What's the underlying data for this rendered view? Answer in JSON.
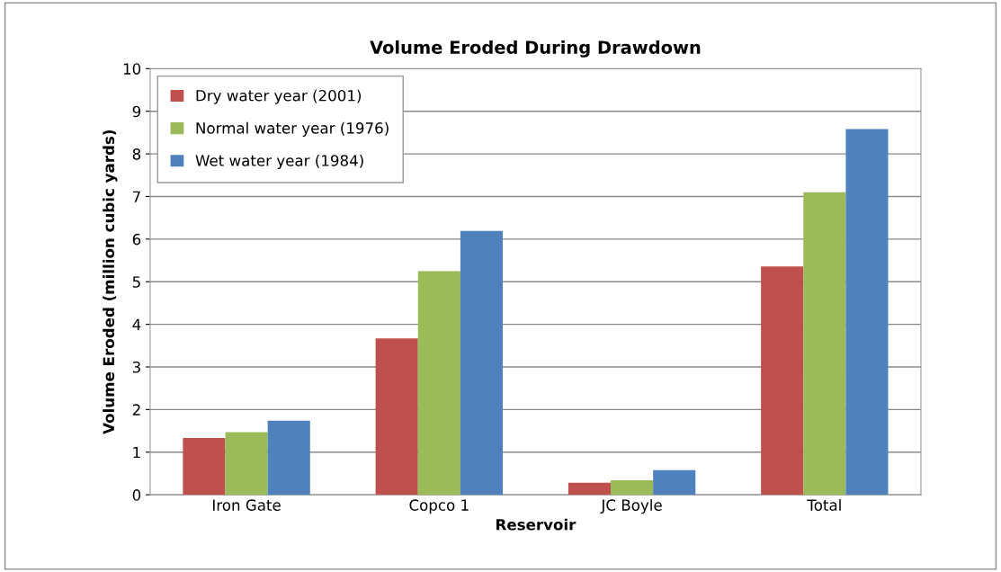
{
  "chart_data": {
    "type": "bar",
    "title": "Volume Eroded During Drawdown",
    "xlabel": "Reservoir",
    "ylabel": "Volume Eroded (million cubic yards)",
    "categories": [
      "Iron Gate",
      "Copco 1",
      "JC Boyle",
      "Total"
    ],
    "series": [
      {
        "name": "Dry water year (2001)",
        "color": "#c0504d",
        "values": [
          1.33,
          3.67,
          0.28,
          5.36
        ]
      },
      {
        "name": "Normal water year (1976)",
        "color": "#9bbb59",
        "values": [
          1.47,
          5.25,
          0.34,
          7.1
        ]
      },
      {
        "name": "Wet water year (1984)",
        "color": "#4f81bd",
        "values": [
          1.74,
          6.19,
          0.58,
          8.58
        ]
      }
    ],
    "ylim": [
      0,
      10
    ],
    "yticks": [
      0,
      1,
      2,
      3,
      4,
      5,
      6,
      7,
      8,
      9,
      10
    ],
    "grid": "y",
    "legend": "top left"
  }
}
